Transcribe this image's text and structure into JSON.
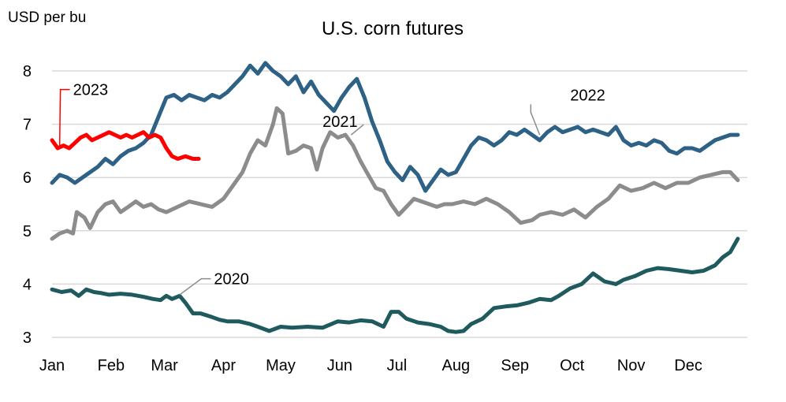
{
  "chart_data": {
    "type": "line",
    "title": "U.S. corn futures",
    "ylabel": "USD per bu",
    "xlabel": "",
    "ylim": [
      3,
      8
    ],
    "yticks": [
      3,
      4,
      5,
      6,
      7,
      8
    ],
    "xlim": [
      0,
      365
    ],
    "xticks": [
      {
        "label": "Jan",
        "day": 0
      },
      {
        "label": "Feb",
        "day": 31
      },
      {
        "label": "Mar",
        "day": 59
      },
      {
        "label": "Apr",
        "day": 90
      },
      {
        "label": "May",
        "day": 120
      },
      {
        "label": "Jun",
        "day": 151
      },
      {
        "label": "Jul",
        "day": 181
      },
      {
        "label": "Aug",
        "day": 212
      },
      {
        "label": "Sep",
        "day": 243
      },
      {
        "label": "Oct",
        "day": 273
      },
      {
        "label": "Nov",
        "day": 304
      },
      {
        "label": "Dec",
        "day": 334
      }
    ],
    "grid": true,
    "legend": "none",
    "series": [
      {
        "name": "2020",
        "color": "#1f5b5e",
        "label_day": 85,
        "label_value": 4.1,
        "anchor_day": 67,
        "anchor_value": 3.8,
        "points": [
          [
            0,
            3.9
          ],
          [
            5,
            3.85
          ],
          [
            10,
            3.88
          ],
          [
            14,
            3.78
          ],
          [
            18,
            3.9
          ],
          [
            22,
            3.85
          ],
          [
            26,
            3.83
          ],
          [
            30,
            3.8
          ],
          [
            36,
            3.82
          ],
          [
            42,
            3.8
          ],
          [
            48,
            3.76
          ],
          [
            53,
            3.72
          ],
          [
            57,
            3.7
          ],
          [
            60,
            3.78
          ],
          [
            63,
            3.72
          ],
          [
            67,
            3.78
          ],
          [
            70,
            3.65
          ],
          [
            74,
            3.45
          ],
          [
            78,
            3.45
          ],
          [
            84,
            3.38
          ],
          [
            88,
            3.33
          ],
          [
            92,
            3.3
          ],
          [
            98,
            3.3
          ],
          [
            104,
            3.25
          ],
          [
            108,
            3.2
          ],
          [
            114,
            3.12
          ],
          [
            120,
            3.2
          ],
          [
            126,
            3.18
          ],
          [
            134,
            3.2
          ],
          [
            142,
            3.18
          ],
          [
            150,
            3.3
          ],
          [
            156,
            3.28
          ],
          [
            162,
            3.32
          ],
          [
            168,
            3.3
          ],
          [
            174,
            3.2
          ],
          [
            178,
            3.48
          ],
          [
            182,
            3.48
          ],
          [
            186,
            3.35
          ],
          [
            192,
            3.28
          ],
          [
            198,
            3.25
          ],
          [
            204,
            3.2
          ],
          [
            208,
            3.12
          ],
          [
            212,
            3.1
          ],
          [
            216,
            3.12
          ],
          [
            220,
            3.25
          ],
          [
            226,
            3.35
          ],
          [
            232,
            3.55
          ],
          [
            238,
            3.58
          ],
          [
            244,
            3.6
          ],
          [
            250,
            3.65
          ],
          [
            256,
            3.72
          ],
          [
            262,
            3.7
          ],
          [
            266,
            3.78
          ],
          [
            272,
            3.92
          ],
          [
            278,
            4.0
          ],
          [
            284,
            4.2
          ],
          [
            290,
            4.05
          ],
          [
            296,
            4.0
          ],
          [
            300,
            4.08
          ],
          [
            306,
            4.15
          ],
          [
            312,
            4.25
          ],
          [
            318,
            4.3
          ],
          [
            324,
            4.28
          ],
          [
            330,
            4.25
          ],
          [
            336,
            4.22
          ],
          [
            342,
            4.25
          ],
          [
            348,
            4.35
          ],
          [
            352,
            4.5
          ],
          [
            356,
            4.6
          ],
          [
            360,
            4.85
          ]
        ]
      },
      {
        "name": "2021",
        "color": "#8c8c8c",
        "label_day": 142,
        "label_value": 7.05,
        "anchor_day": 157,
        "anchor_value": 6.8,
        "points": [
          [
            0,
            4.85
          ],
          [
            4,
            4.95
          ],
          [
            8,
            5.0
          ],
          [
            11,
            4.95
          ],
          [
            13,
            5.35
          ],
          [
            17,
            5.25
          ],
          [
            20,
            5.05
          ],
          [
            24,
            5.35
          ],
          [
            28,
            5.5
          ],
          [
            32,
            5.55
          ],
          [
            36,
            5.35
          ],
          [
            40,
            5.45
          ],
          [
            44,
            5.55
          ],
          [
            48,
            5.45
          ],
          [
            52,
            5.5
          ],
          [
            56,
            5.4
          ],
          [
            60,
            5.35
          ],
          [
            66,
            5.45
          ],
          [
            72,
            5.55
          ],
          [
            78,
            5.5
          ],
          [
            84,
            5.45
          ],
          [
            90,
            5.6
          ],
          [
            96,
            5.9
          ],
          [
            100,
            6.1
          ],
          [
            104,
            6.45
          ],
          [
            108,
            6.7
          ],
          [
            112,
            6.6
          ],
          [
            116,
            7.0
          ],
          [
            118,
            7.3
          ],
          [
            121,
            7.2
          ],
          [
            124,
            6.45
          ],
          [
            128,
            6.5
          ],
          [
            132,
            6.6
          ],
          [
            136,
            6.55
          ],
          [
            139,
            6.15
          ],
          [
            142,
            6.55
          ],
          [
            146,
            6.85
          ],
          [
            150,
            6.75
          ],
          [
            154,
            6.8
          ],
          [
            158,
            6.6
          ],
          [
            162,
            6.3
          ],
          [
            166,
            6.05
          ],
          [
            170,
            5.8
          ],
          [
            174,
            5.75
          ],
          [
            178,
            5.5
          ],
          [
            182,
            5.3
          ],
          [
            186,
            5.45
          ],
          [
            190,
            5.6
          ],
          [
            194,
            5.55
          ],
          [
            198,
            5.5
          ],
          [
            202,
            5.45
          ],
          [
            206,
            5.5
          ],
          [
            210,
            5.5
          ],
          [
            216,
            5.55
          ],
          [
            222,
            5.5
          ],
          [
            228,
            5.6
          ],
          [
            234,
            5.5
          ],
          [
            240,
            5.35
          ],
          [
            246,
            5.15
          ],
          [
            252,
            5.2
          ],
          [
            256,
            5.3
          ],
          [
            262,
            5.35
          ],
          [
            268,
            5.3
          ],
          [
            274,
            5.4
          ],
          [
            280,
            5.25
          ],
          [
            286,
            5.45
          ],
          [
            292,
            5.6
          ],
          [
            298,
            5.85
          ],
          [
            304,
            5.75
          ],
          [
            310,
            5.8
          ],
          [
            316,
            5.9
          ],
          [
            322,
            5.8
          ],
          [
            328,
            5.9
          ],
          [
            334,
            5.9
          ],
          [
            340,
            6.0
          ],
          [
            346,
            6.05
          ],
          [
            352,
            6.1
          ],
          [
            356,
            6.1
          ],
          [
            360,
            5.95
          ]
        ]
      },
      {
        "name": "2022",
        "color": "#2e6186",
        "label_day": 272,
        "label_value": 7.55,
        "anchor_day": 256,
        "anchor_value": 6.8,
        "points": [
          [
            0,
            5.9
          ],
          [
            4,
            6.05
          ],
          [
            8,
            6.0
          ],
          [
            12,
            5.9
          ],
          [
            16,
            6.0
          ],
          [
            20,
            6.1
          ],
          [
            24,
            6.2
          ],
          [
            28,
            6.35
          ],
          [
            32,
            6.25
          ],
          [
            36,
            6.4
          ],
          [
            40,
            6.5
          ],
          [
            44,
            6.55
          ],
          [
            48,
            6.65
          ],
          [
            52,
            6.8
          ],
          [
            56,
            7.15
          ],
          [
            60,
            7.5
          ],
          [
            64,
            7.55
          ],
          [
            68,
            7.45
          ],
          [
            72,
            7.55
          ],
          [
            76,
            7.5
          ],
          [
            80,
            7.45
          ],
          [
            84,
            7.55
          ],
          [
            88,
            7.5
          ],
          [
            92,
            7.6
          ],
          [
            96,
            7.75
          ],
          [
            100,
            7.9
          ],
          [
            104,
            8.1
          ],
          [
            108,
            7.95
          ],
          [
            112,
            8.15
          ],
          [
            116,
            8.0
          ],
          [
            120,
            7.9
          ],
          [
            124,
            7.75
          ],
          [
            128,
            7.9
          ],
          [
            132,
            7.6
          ],
          [
            136,
            7.8
          ],
          [
            140,
            7.55
          ],
          [
            144,
            7.4
          ],
          [
            148,
            7.25
          ],
          [
            152,
            7.5
          ],
          [
            156,
            7.7
          ],
          [
            160,
            7.85
          ],
          [
            164,
            7.5
          ],
          [
            168,
            7.05
          ],
          [
            172,
            6.7
          ],
          [
            176,
            6.3
          ],
          [
            180,
            6.1
          ],
          [
            184,
            5.95
          ],
          [
            188,
            6.2
          ],
          [
            192,
            6.05
          ],
          [
            196,
            5.75
          ],
          [
            200,
            5.95
          ],
          [
            204,
            6.15
          ],
          [
            208,
            6.05
          ],
          [
            212,
            6.1
          ],
          [
            216,
            6.35
          ],
          [
            220,
            6.6
          ],
          [
            224,
            6.75
          ],
          [
            228,
            6.7
          ],
          [
            232,
            6.6
          ],
          [
            236,
            6.7
          ],
          [
            240,
            6.85
          ],
          [
            244,
            6.8
          ],
          [
            248,
            6.9
          ],
          [
            252,
            6.8
          ],
          [
            256,
            6.7
          ],
          [
            260,
            6.85
          ],
          [
            264,
            6.95
          ],
          [
            268,
            6.85
          ],
          [
            272,
            6.9
          ],
          [
            276,
            6.95
          ],
          [
            280,
            6.85
          ],
          [
            284,
            6.9
          ],
          [
            288,
            6.85
          ],
          [
            292,
            6.8
          ],
          [
            296,
            6.95
          ],
          [
            300,
            6.7
          ],
          [
            304,
            6.6
          ],
          [
            308,
            6.65
          ],
          [
            312,
            6.6
          ],
          [
            316,
            6.7
          ],
          [
            320,
            6.65
          ],
          [
            324,
            6.5
          ],
          [
            328,
            6.45
          ],
          [
            332,
            6.55
          ],
          [
            336,
            6.55
          ],
          [
            340,
            6.5
          ],
          [
            344,
            6.6
          ],
          [
            348,
            6.7
          ],
          [
            352,
            6.75
          ],
          [
            356,
            6.8
          ],
          [
            360,
            6.8
          ]
        ]
      },
      {
        "name": "2023",
        "color": "#ff0000",
        "label_day": 11,
        "label_value": 7.65,
        "anchor_day": 4,
        "anchor_value": 6.6,
        "points": [
          [
            0,
            6.7
          ],
          [
            3,
            6.55
          ],
          [
            6,
            6.6
          ],
          [
            9,
            6.55
          ],
          [
            12,
            6.65
          ],
          [
            15,
            6.75
          ],
          [
            18,
            6.8
          ],
          [
            21,
            6.7
          ],
          [
            24,
            6.75
          ],
          [
            27,
            6.8
          ],
          [
            30,
            6.85
          ],
          [
            33,
            6.8
          ],
          [
            36,
            6.75
          ],
          [
            39,
            6.8
          ],
          [
            42,
            6.75
          ],
          [
            45,
            6.8
          ],
          [
            48,
            6.85
          ],
          [
            51,
            6.75
          ],
          [
            54,
            6.8
          ],
          [
            57,
            6.75
          ],
          [
            60,
            6.55
          ],
          [
            63,
            6.4
          ],
          [
            66,
            6.35
          ],
          [
            70,
            6.4
          ],
          [
            74,
            6.35
          ],
          [
            77,
            6.35
          ]
        ]
      }
    ]
  }
}
